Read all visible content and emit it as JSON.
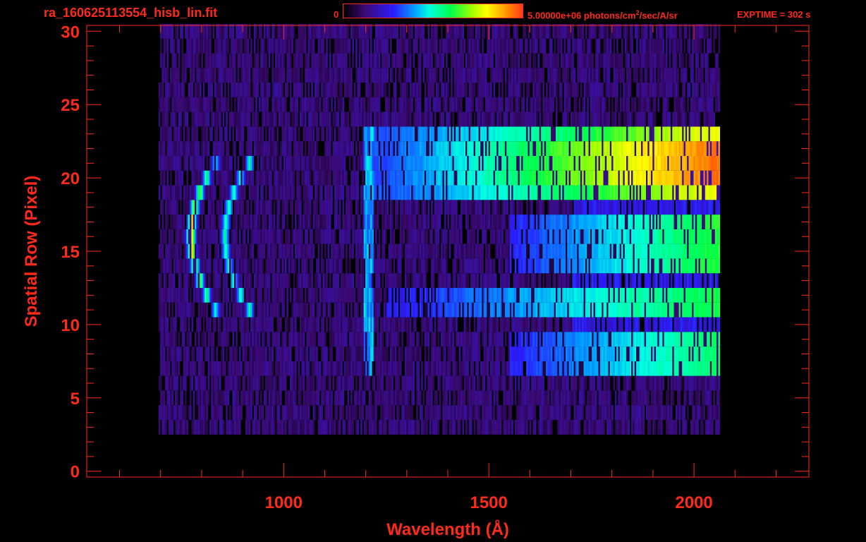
{
  "header": {
    "filename": "ra_160625113554_hisb_lin.fit",
    "colorbar_min_label": "0",
    "colorbar_max_label": "5.00000e+06 photons/cm",
    "colorbar_max_sup": "2",
    "colorbar_max_suffix": "/sec/A/sr",
    "exptime_label": "EXPTIME = 302 s"
  },
  "colors": {
    "axis": "#ff2a1a",
    "background": "#000000",
    "colormap": [
      "#000000",
      "#3b0a75",
      "#2b1cff",
      "#00a4ff",
      "#00ffe0",
      "#00ff4a",
      "#a5ff00",
      "#ffff00",
      "#ff8a00",
      "#ff3a1a"
    ]
  },
  "chart_data": {
    "type": "heatmap",
    "title": "",
    "xlabel": "Wavelength (Å)",
    "ylabel": "Spatial Row (Pixel)",
    "xlim": [
      520,
      2280
    ],
    "ylim": [
      -0.4,
      30.4
    ],
    "x_major_ticks": [
      1000,
      1500,
      2000
    ],
    "y_major_ticks": [
      0,
      5,
      10,
      15,
      20,
      25,
      30
    ],
    "x_tick_labels": [
      "1000",
      "1500",
      "2000"
    ],
    "y_tick_labels": [
      "0",
      "5",
      "10",
      "15",
      "20",
      "25",
      "30"
    ],
    "colorbar": {
      "min": 0,
      "max": 5000000,
      "units": "photons/cm^2/sec/A/sr"
    },
    "detector_range": {
      "x_min": 695,
      "x_max": 2060,
      "rows_min": 0,
      "rows_max": 30
    },
    "features": [
      {
        "name": "curved bright band (left arc)",
        "x_center": 780,
        "rows": [
          11,
          21
        ],
        "peak_intensity": 1.0
      },
      {
        "name": "curved band (second arc)",
        "x_center": 880,
        "rows": [
          11,
          21
        ],
        "peak_intensity": 0.55
      },
      {
        "name": "vertical line",
        "x_center": 1205,
        "rows": [
          7,
          23
        ],
        "peak_intensity": 0.45
      },
      {
        "name": "bright row band",
        "rows": [
          19,
          23
        ],
        "x_range": [
          1200,
          2060
        ],
        "intensity_trend": "increasing",
        "peak_intensity": 0.95
      },
      {
        "name": "row band",
        "rows": [
          14,
          17
        ],
        "x_range": [
          1600,
          2060
        ],
        "intensity_trend": "increasing",
        "peak_intensity": 0.6
      },
      {
        "name": "row band",
        "rows": [
          11,
          12
        ],
        "x_range": [
          1300,
          2060
        ],
        "intensity_trend": "increasing",
        "peak_intensity": 0.6
      },
      {
        "name": "row band",
        "rows": [
          7,
          9
        ],
        "x_range": [
          1600,
          2060
        ],
        "intensity_trend": "increasing",
        "peak_intensity": 0.55
      }
    ]
  }
}
